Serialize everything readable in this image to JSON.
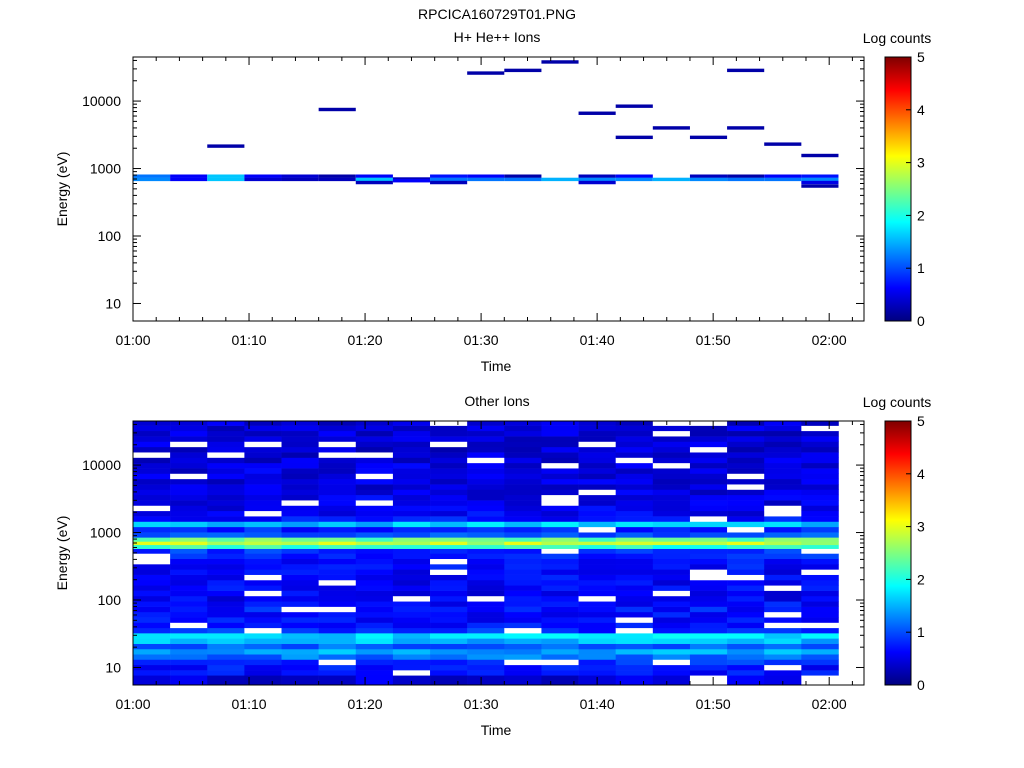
{
  "figure_title": "RPCICA160729T01.PNG",
  "colors": {
    "colormap": [
      "#00007f",
      "#0000ff",
      "#007fff",
      "#00ffff",
      "#7fff7f",
      "#ffff00",
      "#ff7f00",
      "#ff0000",
      "#7f0000"
    ],
    "axis": "#000000",
    "background": "#ffffff"
  },
  "chart_data": [
    {
      "type": "heatmap",
      "title": "H+ He++ Ions",
      "xlabel": "Time",
      "ylabel": "Energy (eV)",
      "y_scale": "log",
      "xlim": [
        "01:00",
        "02:03"
      ],
      "ylim": [
        5.5,
        45000
      ],
      "x_ticks": [
        "01:00",
        "01:10",
        "01:20",
        "01:30",
        "01:40",
        "01:50",
        "02:00"
      ],
      "y_ticks": [
        "10",
        "100",
        "1000",
        "10000"
      ],
      "colorbar": {
        "label": "Log counts",
        "range": [
          0,
          5
        ],
        "ticks": [
          "0",
          "1",
          "2",
          "3",
          "4",
          "5"
        ]
      },
      "column_times": [
        "01:00.0",
        "01:03.2",
        "01:06.4",
        "01:09.6",
        "01:12.8",
        "01:16.0",
        "01:19.2",
        "01:22.4",
        "01:25.6",
        "01:28.8",
        "01:32.0",
        "01:35.2",
        "01:38.4",
        "01:41.6",
        "01:44.8",
        "01:48.0",
        "01:51.2",
        "01:54.4",
        "01:57.6"
      ],
      "cells": [
        {
          "col": 0,
          "e": 770,
          "v": 1.2
        },
        {
          "col": 0,
          "e": 690,
          "v": 1.3
        },
        {
          "col": 1,
          "e": 770,
          "v": 0.6
        },
        {
          "col": 1,
          "e": 690,
          "v": 0.6
        },
        {
          "col": 2,
          "e": 2150,
          "v": 0.2
        },
        {
          "col": 2,
          "e": 770,
          "v": 1.6
        },
        {
          "col": 2,
          "e": 690,
          "v": 1.6
        },
        {
          "col": 3,
          "e": 770,
          "v": 0.6
        },
        {
          "col": 3,
          "e": 690,
          "v": 0.4
        },
        {
          "col": 4,
          "e": 770,
          "v": 0.4
        },
        {
          "col": 4,
          "e": 690,
          "v": 0.3
        },
        {
          "col": 5,
          "e": 7500,
          "v": 0.2
        },
        {
          "col": 5,
          "e": 770,
          "v": 0.2
        },
        {
          "col": 5,
          "e": 690,
          "v": 0.3
        },
        {
          "col": 6,
          "e": 770,
          "v": 0.6
        },
        {
          "col": 6,
          "e": 690,
          "v": 1.6
        },
        {
          "col": 6,
          "e": 620,
          "v": 0.3
        },
        {
          "col": 7,
          "e": 700,
          "v": 0.3
        },
        {
          "col": 7,
          "e": 660,
          "v": 0.6
        },
        {
          "col": 8,
          "e": 770,
          "v": 0.7
        },
        {
          "col": 8,
          "e": 690,
          "v": 1.2
        },
        {
          "col": 8,
          "e": 620,
          "v": 0.3
        },
        {
          "col": 9,
          "e": 26000,
          "v": 0.2
        },
        {
          "col": 9,
          "e": 770,
          "v": 0.6
        },
        {
          "col": 9,
          "e": 690,
          "v": 1.2
        },
        {
          "col": 10,
          "e": 28500,
          "v": 0.2
        },
        {
          "col": 10,
          "e": 770,
          "v": 0.2
        },
        {
          "col": 10,
          "e": 690,
          "v": 1.2
        },
        {
          "col": 11,
          "e": 38000,
          "v": 0.2
        },
        {
          "col": 11,
          "e": 690,
          "v": 1.5
        },
        {
          "col": 12,
          "e": 6600,
          "v": 0.2
        },
        {
          "col": 12,
          "e": 770,
          "v": 0.3
        },
        {
          "col": 12,
          "e": 690,
          "v": 1.3
        },
        {
          "col": 12,
          "e": 620,
          "v": 0.4
        },
        {
          "col": 13,
          "e": 8400,
          "v": 0.2
        },
        {
          "col": 13,
          "e": 2900,
          "v": 0.2
        },
        {
          "col": 13,
          "e": 770,
          "v": 0.6
        },
        {
          "col": 13,
          "e": 690,
          "v": 1.3
        },
        {
          "col": 14,
          "e": 4000,
          "v": 0.2
        },
        {
          "col": 14,
          "e": 690,
          "v": 1.5
        },
        {
          "col": 15,
          "e": 2900,
          "v": 0.2
        },
        {
          "col": 15,
          "e": 770,
          "v": 0.3
        },
        {
          "col": 15,
          "e": 690,
          "v": 1.3
        },
        {
          "col": 16,
          "e": 28500,
          "v": 0.2
        },
        {
          "col": 16,
          "e": 4000,
          "v": 0.2
        },
        {
          "col": 16,
          "e": 770,
          "v": 0.2
        },
        {
          "col": 16,
          "e": 690,
          "v": 1.2
        },
        {
          "col": 17,
          "e": 2300,
          "v": 0.2
        },
        {
          "col": 17,
          "e": 770,
          "v": 0.6
        },
        {
          "col": 17,
          "e": 690,
          "v": 1.2
        },
        {
          "col": 18,
          "e": 1560,
          "v": 0.2
        },
        {
          "col": 18,
          "e": 770,
          "v": 0.7
        },
        {
          "col": 18,
          "e": 690,
          "v": 1.3
        },
        {
          "col": 18,
          "e": 620,
          "v": 0.5
        },
        {
          "col": 18,
          "e": 550,
          "v": 0.2
        }
      ]
    },
    {
      "type": "heatmap",
      "title": "Other Ions",
      "xlabel": "Time",
      "ylabel": "Energy (eV)",
      "y_scale": "log",
      "xlim": [
        "01:00",
        "02:03"
      ],
      "ylim": [
        5.5,
        45000
      ],
      "x_ticks": [
        "01:00",
        "01:10",
        "01:20",
        "01:30",
        "01:40",
        "01:50",
        "02:00"
      ],
      "y_ticks": [
        "10",
        "100",
        "1000",
        "10000"
      ],
      "colorbar": {
        "label": "Log counts",
        "range": [
          0,
          5
        ],
        "ticks": [
          "0",
          "1",
          "2",
          "3",
          "4",
          "5"
        ]
      },
      "column_times": [
        "01:00.0",
        "01:03.2",
        "01:06.4",
        "01:09.6",
        "01:12.8",
        "01:16.0",
        "01:19.2",
        "01:22.4",
        "01:25.6",
        "01:28.8",
        "01:32.0",
        "01:35.2",
        "01:38.4",
        "01:41.6",
        "01:44.8",
        "01:48.0",
        "01:51.2",
        "01:54.4",
        "01:57.6"
      ],
      "energy_profile": [
        {
          "e": 7,
          "v": 0.45
        },
        {
          "e": 8.4,
          "v": 0.7
        },
        {
          "e": 10,
          "v": 0.7
        },
        {
          "e": 12,
          "v": 0.9
        },
        {
          "e": 14.4,
          "v": 1.2
        },
        {
          "e": 17.2,
          "v": 1.45
        },
        {
          "e": 20.6,
          "v": 1.15
        },
        {
          "e": 24.7,
          "v": 1.55
        },
        {
          "e": 29.6,
          "v": 1.7
        },
        {
          "e": 35.4,
          "v": 0.85
        },
        {
          "e": 42.4,
          "v": 0.75
        },
        {
          "e": 50.8,
          "v": 0.7
        },
        {
          "e": 61,
          "v": 0.7
        },
        {
          "e": 73,
          "v": 0.75
        },
        {
          "e": 87.5,
          "v": 0.7
        },
        {
          "e": 105,
          "v": 0.6
        },
        {
          "e": 126,
          "v": 0.6
        },
        {
          "e": 151,
          "v": 0.65
        },
        {
          "e": 181,
          "v": 0.6
        },
        {
          "e": 217,
          "v": 0.65
        },
        {
          "e": 260,
          "v": 0.6
        },
        {
          "e": 312,
          "v": 0.7
        },
        {
          "e": 374,
          "v": 0.7
        },
        {
          "e": 448,
          "v": 0.8
        },
        {
          "e": 537,
          "v": 0.9
        },
        {
          "e": 620,
          "v": 2.1
        },
        {
          "e": 700,
          "v": 2.8
        },
        {
          "e": 780,
          "v": 2.4
        },
        {
          "e": 925,
          "v": 1.0
        },
        {
          "e": 1110,
          "v": 0.8
        },
        {
          "e": 1330,
          "v": 1.6
        },
        {
          "e": 1600,
          "v": 0.75
        },
        {
          "e": 1920,
          "v": 0.6
        },
        {
          "e": 2300,
          "v": 0.55
        },
        {
          "e": 2760,
          "v": 0.5
        },
        {
          "e": 3310,
          "v": 0.55
        },
        {
          "e": 3970,
          "v": 0.5
        },
        {
          "e": 4760,
          "v": 0.5
        },
        {
          "e": 5710,
          "v": 0.5
        },
        {
          "e": 6850,
          "v": 0.5
        },
        {
          "e": 8220,
          "v": 0.5
        },
        {
          "e": 9860,
          "v": 0.5
        },
        {
          "e": 11800,
          "v": 0.45
        },
        {
          "e": 14200,
          "v": 0.45
        },
        {
          "e": 17000,
          "v": 0.45
        },
        {
          "e": 20400,
          "v": 0.45
        },
        {
          "e": 24500,
          "v": 0.45
        },
        {
          "e": 29400,
          "v": 0.45
        },
        {
          "e": 35300,
          "v": 0.45
        },
        {
          "e": 42000,
          "v": 0.45
        }
      ]
    }
  ]
}
